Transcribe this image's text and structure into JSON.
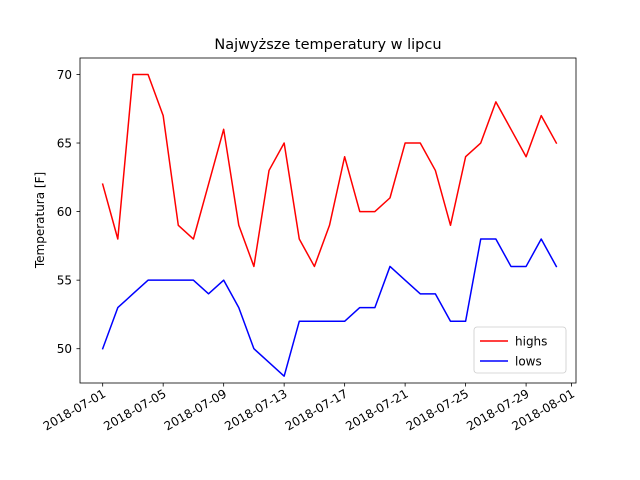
{
  "chart_data": {
    "type": "line",
    "title": "Najwyższe temperatury w lipcu",
    "xlabel": "",
    "ylabel": "Temperatura [F]",
    "x": [
      "2018-07-01",
      "2018-07-02",
      "2018-07-03",
      "2018-07-04",
      "2018-07-05",
      "2018-07-06",
      "2018-07-07",
      "2018-07-08",
      "2018-07-09",
      "2018-07-10",
      "2018-07-11",
      "2018-07-12",
      "2018-07-13",
      "2018-07-14",
      "2018-07-15",
      "2018-07-16",
      "2018-07-17",
      "2018-07-18",
      "2018-07-19",
      "2018-07-20",
      "2018-07-21",
      "2018-07-22",
      "2018-07-23",
      "2018-07-24",
      "2018-07-25",
      "2018-07-26",
      "2018-07-27",
      "2018-07-28",
      "2018-07-29",
      "2018-07-30",
      "2018-07-31"
    ],
    "xlim": [
      "2018-06-29.5",
      "2018-08-01.3"
    ],
    "xticks": [
      "2018-07-01",
      "2018-07-05",
      "2018-07-09",
      "2018-07-13",
      "2018-07-17",
      "2018-07-21",
      "2018-07-25",
      "2018-07-29",
      "2018-08-01"
    ],
    "ylim": [
      47.5,
      71.2
    ],
    "yticks": [
      50,
      55,
      60,
      65,
      70
    ],
    "grid": false,
    "legend_position": "lower-right",
    "series": [
      {
        "name": "highs",
        "color": "#ff0000",
        "values": [
          62,
          58,
          70,
          70,
          67,
          59,
          58,
          62,
          66,
          59,
          56,
          63,
          65,
          58,
          56,
          59,
          64,
          60,
          60,
          61,
          65,
          65,
          63,
          59,
          64,
          65,
          68,
          66,
          64,
          67,
          65
        ]
      },
      {
        "name": "lows",
        "color": "#0000ff",
        "values": [
          50,
          53,
          54,
          55,
          55,
          55,
          55,
          54,
          55,
          53,
          50,
          49,
          48,
          52,
          52,
          52,
          52,
          53,
          53,
          56,
          55,
          54,
          54,
          52,
          52,
          58,
          58,
          56,
          56,
          58,
          56
        ]
      }
    ]
  }
}
